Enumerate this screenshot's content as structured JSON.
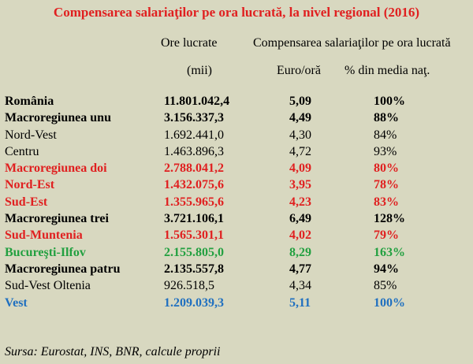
{
  "title": "Compensarea salariaţilor pe ora lucrată, la nivel regional (2016)",
  "headers": {
    "ore_lucrate": "Ore lucrate",
    "compensarea": "Compensarea salariaţilor pe ora lucrată",
    "mii": "(mii)",
    "euro_ora": "Euro/oră",
    "pct_media": "% din media naţ."
  },
  "rows": [
    {
      "name": "România",
      "ore": "11.801.042,4",
      "euro": "5,09",
      "pct": "100%",
      "style": "bold"
    },
    {
      "name": "Macroregiunea unu",
      "ore": "3.156.337,3",
      "euro": "4,49",
      "pct": "88%",
      "style": "bold"
    },
    {
      "name": "Nord-Vest",
      "ore": "1.692.441,0",
      "euro": "4,30",
      "pct": "84%",
      "style": "normal"
    },
    {
      "name": "Centru",
      "ore": "1.463.896,3",
      "euro": "4,72",
      "pct": "93%",
      "style": "normal"
    },
    {
      "name": "Macroregiunea doi",
      "ore": "2.788.041,2",
      "euro": "4,09",
      "pct": "80%",
      "style": "bold red"
    },
    {
      "name": "Nord-Est",
      "ore": "1.432.075,6",
      "euro": "3,95",
      "pct": "78%",
      "style": "bold red"
    },
    {
      "name": "Sud-Est",
      "ore": "1.355.965,6",
      "euro": "4,23",
      "pct": "83%",
      "style": "bold red"
    },
    {
      "name": "Macroregiunea trei",
      "ore": "3.721.106,1",
      "euro": "6,49",
      "pct": "128%",
      "style": "bold"
    },
    {
      "name": "Sud-Muntenia",
      "ore": "1.565.301,1",
      "euro": "4,02",
      "pct": "79%",
      "style": "bold red"
    },
    {
      "name": "Bucureşti-Ilfov",
      "ore": "2.155.805,0",
      "euro": "8,29",
      "pct": "163%",
      "style": "bold green"
    },
    {
      "name": "Macroregiunea patru",
      "ore": "2.135.557,8",
      "euro": "4,77",
      "pct": "94%",
      "style": "bold"
    },
    {
      "name": "Sud-Vest Oltenia",
      "ore": "926.518,5",
      "euro": "4,34",
      "pct": "85%",
      "style": "normal"
    },
    {
      "name": "Vest",
      "ore": "1.209.039,3",
      "euro": "5,11",
      "pct": "100%",
      "style": "bold blue"
    }
  ],
  "colors": {
    "background": "#d8d8c0",
    "red": "#e02020",
    "green": "#22a040",
    "blue": "#2070c0"
  },
  "source": "Sursa: Eurostat, INS, BNR, calcule proprii"
}
